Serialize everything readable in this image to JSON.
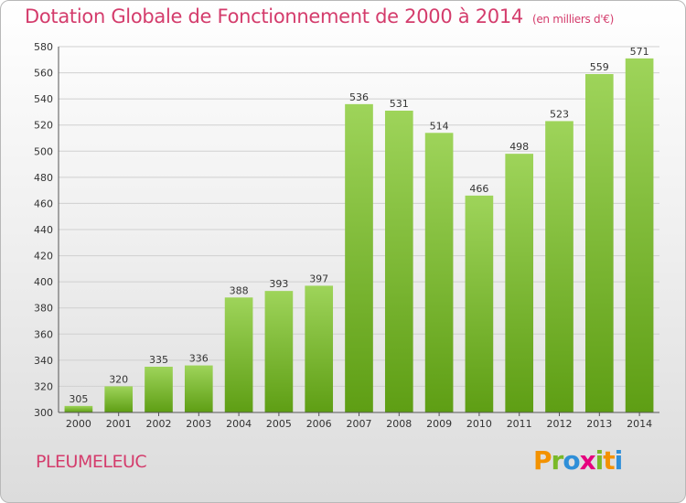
{
  "title": "Dotation Globale de Fonctionnement de 2000 à 2014",
  "subtitle": "(en milliers d'€)",
  "commune": "PLEUMELEUC",
  "logo": {
    "letters": [
      "P",
      "r",
      "o",
      "x",
      "i",
      "t",
      "i"
    ],
    "colors": [
      "#f39200",
      "#7ab928",
      "#2f8fd8",
      "#e6007e",
      "#7ab928",
      "#f39200",
      "#2f8fd8"
    ]
  },
  "colors": {
    "bar_light": "#9ed45a",
    "bar_dark": "#5e9e14",
    "grid": "#d0d0d0",
    "title": "#d43c6c"
  },
  "chart_data": {
    "type": "bar",
    "title": "Dotation Globale de Fonctionnement de 2000 à 2014",
    "subtitle": "(en milliers d'€)",
    "categories": [
      "2000",
      "2001",
      "2002",
      "2003",
      "2004",
      "2005",
      "2006",
      "2007",
      "2008",
      "2009",
      "2010",
      "2011",
      "2012",
      "2013",
      "2014"
    ],
    "values": [
      305,
      320,
      335,
      336,
      388,
      393,
      397,
      536,
      531,
      514,
      466,
      498,
      523,
      559,
      571
    ],
    "ylim": [
      300,
      580
    ],
    "yticks": [
      300,
      320,
      340,
      360,
      380,
      400,
      420,
      440,
      460,
      480,
      500,
      520,
      540,
      560,
      580
    ],
    "grid": true,
    "xlabel": "",
    "ylabel": ""
  }
}
